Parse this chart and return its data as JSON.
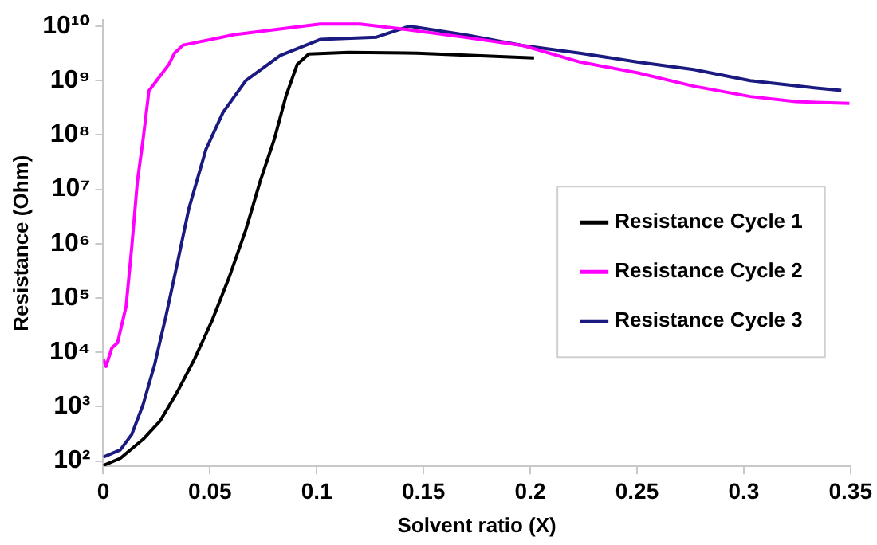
{
  "chart_data": {
    "type": "line",
    "xlabel": "Solvent ratio (X)",
    "ylabel": "Resistance (Ohm)",
    "log": "y",
    "grid": false,
    "legend": "right",
    "marker": "none",
    "line_style": "solid",
    "xlim": [
      0,
      0.35
    ],
    "xticks": [
      0,
      0.05,
      0.1,
      0.15,
      0.2,
      0.25,
      0.3,
      0.35
    ],
    "ylim": [
      80,
      13000000000
    ],
    "yticks": [
      {
        "value": 100,
        "label": "10²"
      },
      {
        "value": 1000,
        "label": "10³"
      },
      {
        "value": 10000,
        "label": "10⁴"
      },
      {
        "value": 100000,
        "label": "10⁵"
      },
      {
        "value": 1000000,
        "label": "10⁶"
      },
      {
        "value": 10000000,
        "label": "10⁷"
      },
      {
        "value": 100000000,
        "label": "10⁸"
      },
      {
        "value": 1000000000,
        "label": "10⁹"
      },
      {
        "value": 10000000000,
        "label": "10¹⁰"
      }
    ],
    "series": [
      {
        "name": "Resistance Cycle 1",
        "color": "#000000",
        "x": [
          0,
          0.008,
          0.0187,
          0.0267,
          0.0348,
          0.0428,
          0.0508,
          0.0588,
          0.0668,
          0.0735,
          0.0802,
          0.0856,
          0.0909,
          0.0963,
          0.115,
          0.147,
          0.2018
        ],
        "values": [
          83,
          112,
          251,
          550,
          1900,
          7600,
          37000,
          230000,
          1800000,
          14000000,
          85000000,
          520000000,
          2000000000,
          3100000000,
          3300000000,
          3200000000,
          2600000000
        ]
      },
      {
        "name": "Resistance Cycle 2",
        "color": "#ff00ff",
        "x": [
          0,
          0.0013,
          0.004,
          0.0067,
          0.0107,
          0.0134,
          0.016,
          0.0187,
          0.0214,
          0.0308,
          0.0334,
          0.0374,
          0.0615,
          0.1016,
          0.1203,
          0.1417,
          0.17,
          0.1967,
          0.2233,
          0.25,
          0.2765,
          0.303,
          0.3243,
          0.3495
        ],
        "values": [
          7600,
          5500,
          12000,
          15000,
          70000,
          900000,
          14000000,
          85000000,
          650000000,
          2000000000,
          3200000000,
          4500000000,
          7000000000,
          11000000000,
          11000000000,
          8700000000,
          6200000000,
          4400000000,
          2200000000,
          1400000000,
          790000000,
          510000000,
          410000000,
          380000000
        ]
      },
      {
        "name": "Resistance Cycle 3",
        "color": "#1a1a80",
        "x": [
          0,
          0.008,
          0.0134,
          0.0187,
          0.0241,
          0.0294,
          0.0348,
          0.0401,
          0.0481,
          0.0561,
          0.0668,
          0.0829,
          0.1016,
          0.128,
          0.1435,
          0.17,
          0.1967,
          0.2233,
          0.25,
          0.2765,
          0.303,
          0.3297,
          0.3457
        ],
        "values": [
          118,
          160,
          310,
          1100,
          6000,
          47000,
          450000,
          4400000,
          54000000,
          260000000,
          1000000000,
          2900000000,
          5700000000,
          6300000000,
          10000000000,
          6900000000,
          4400000000,
          3200000000,
          2200000000,
          1600000000,
          1000000000,
          760000000,
          660000000
        ]
      }
    ]
  }
}
